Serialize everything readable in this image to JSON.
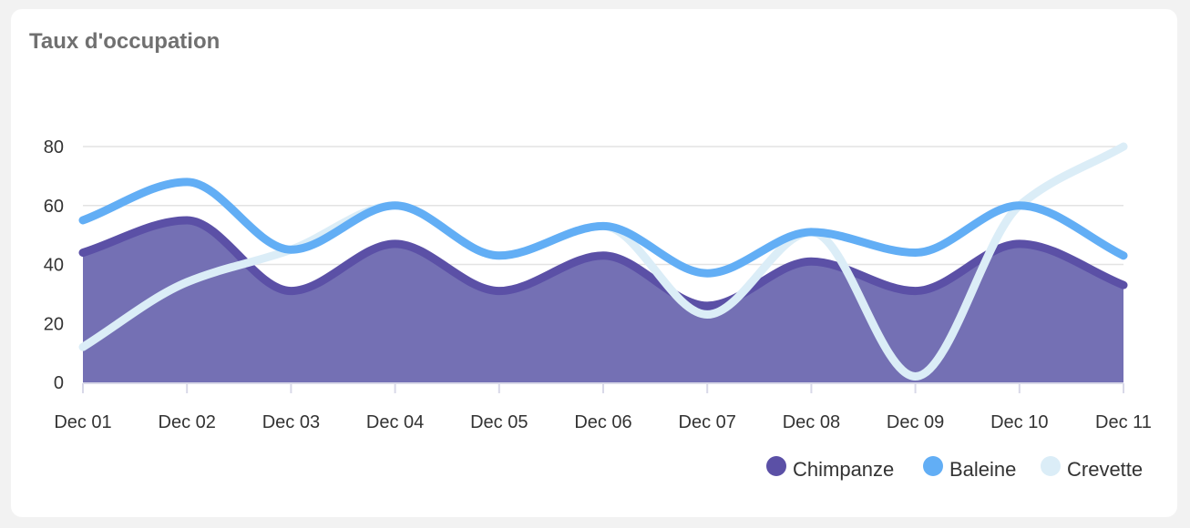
{
  "card": {
    "title": "Taux d'occupation"
  },
  "colors": {
    "Chimpanze": "#5b50a6",
    "Chimpanze_fill": "#7470b4",
    "Baleine": "#62aef5",
    "Crevette": "#dbedf7",
    "grid": "#e3e3e3",
    "axis": "#d8d8e8"
  },
  "chart_data": {
    "type": "area",
    "title": "Taux d'occupation",
    "categories": [
      "Dec 01",
      "Dec 02",
      "Dec 03",
      "Dec 04",
      "Dec 05",
      "Dec 06",
      "Dec 07",
      "Dec 08",
      "Dec 09",
      "Dec 10",
      "Dec 11"
    ],
    "ylim": [
      0,
      80
    ],
    "yticks": [
      0,
      20,
      40,
      60,
      80
    ],
    "grid": true,
    "legend": "bottom-right",
    "series": [
      {
        "name": "Chimpanze",
        "type": "area",
        "values": [
          44,
          55,
          31,
          47,
          31,
          43,
          26,
          41,
          31,
          47,
          33
        ]
      },
      {
        "name": "Baleine",
        "type": "line",
        "values": [
          55,
          68,
          45,
          60,
          43,
          53,
          37,
          51,
          44,
          60,
          43
        ]
      },
      {
        "name": "Crevette",
        "type": "line",
        "values": [
          12,
          34,
          45,
          60,
          43,
          53,
          23,
          51,
          2,
          60,
          80
        ]
      }
    ]
  }
}
